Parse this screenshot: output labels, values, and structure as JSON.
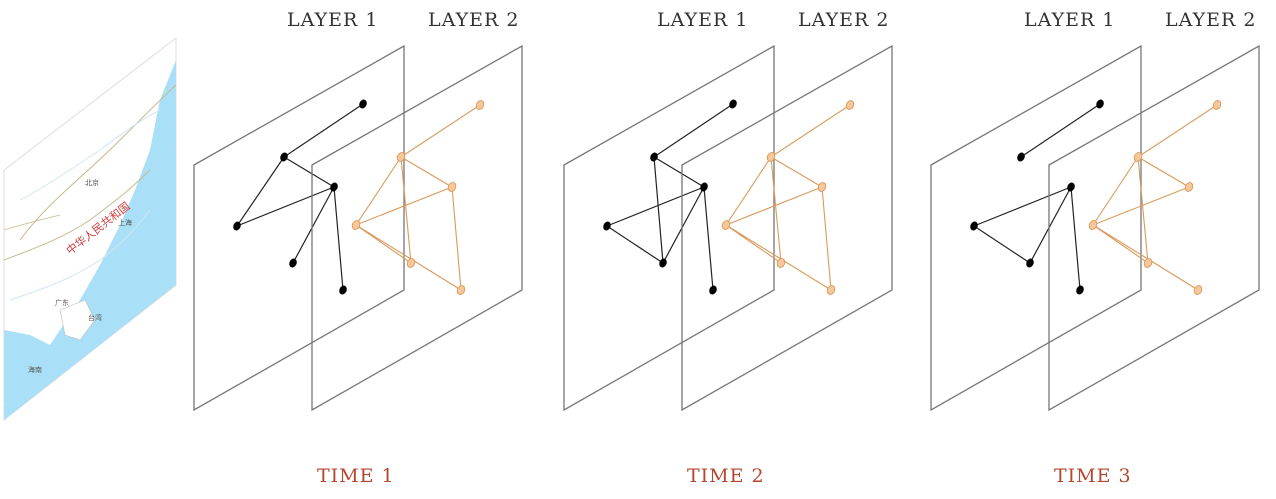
{
  "colors": {
    "layer1_nodes": "#000000",
    "layer1_edges": "#222222",
    "layer2_nodes": "#f5c79a",
    "layer2_edges": "#d99a5b",
    "plane_border": "#777777",
    "time_label": "#b5462f",
    "map_sea": "#a9e0f7",
    "map_land": "#ffffff"
  },
  "map": {
    "title_text": "中华人民共和国",
    "place_labels": [
      "北京",
      "上海",
      "广东",
      "台湾",
      "海南"
    ]
  },
  "panels": [
    {
      "time_label": "TIME 1",
      "layer1_label": "LAYER 1",
      "layer2_label": "LAYER 2",
      "layer1_edges": [
        [
          0,
          1
        ],
        [
          1,
          2
        ],
        [
          1,
          3
        ],
        [
          2,
          3
        ],
        [
          2,
          4
        ],
        [
          2,
          5
        ]
      ],
      "layer2_edges": [
        [
          0,
          1
        ],
        [
          1,
          2
        ],
        [
          1,
          3
        ],
        [
          1,
          4
        ],
        [
          2,
          3
        ],
        [
          3,
          4
        ],
        [
          2,
          5
        ],
        [
          3,
          5
        ]
      ]
    },
    {
      "time_label": "TIME 2",
      "layer1_label": "LAYER 1",
      "layer2_label": "LAYER 2",
      "layer1_edges": [
        [
          0,
          1
        ],
        [
          1,
          2
        ],
        [
          1,
          4
        ],
        [
          2,
          3
        ],
        [
          2,
          4
        ],
        [
          2,
          5
        ],
        [
          3,
          4
        ]
      ],
      "layer2_edges": [
        [
          0,
          1
        ],
        [
          1,
          2
        ],
        [
          1,
          3
        ],
        [
          1,
          4
        ],
        [
          2,
          3
        ],
        [
          3,
          4
        ],
        [
          2,
          5
        ],
        [
          3,
          5
        ]
      ]
    },
    {
      "time_label": "TIME 3",
      "layer1_label": "LAYER 1",
      "layer2_label": "LAYER 2",
      "layer1_edges": [
        [
          0,
          1
        ],
        [
          2,
          3
        ],
        [
          2,
          4
        ],
        [
          2,
          5
        ],
        [
          3,
          4
        ]
      ],
      "layer2_edges": [
        [
          0,
          1
        ],
        [
          1,
          2
        ],
        [
          1,
          3
        ],
        [
          1,
          4
        ],
        [
          2,
          3
        ],
        [
          3,
          4
        ],
        [
          3,
          5
        ]
      ]
    }
  ]
}
